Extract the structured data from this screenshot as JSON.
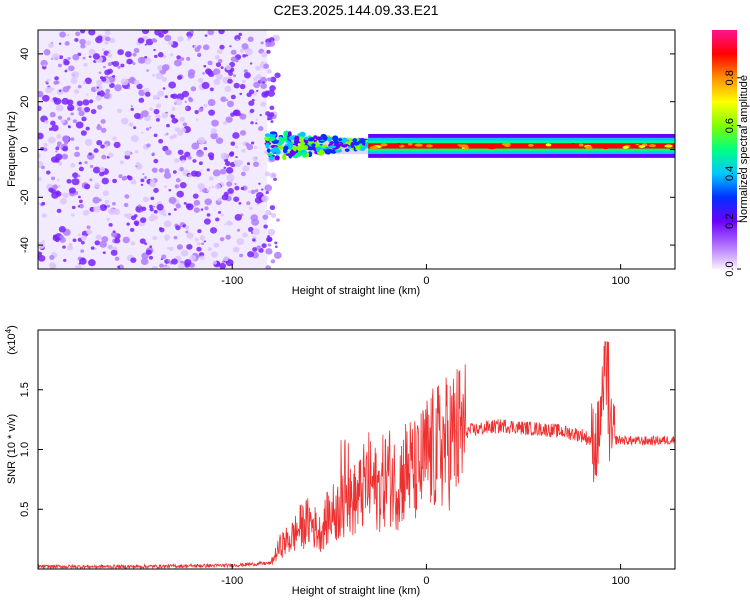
{
  "title": "C2E3.2025.144.09.33.E21",
  "chart_data": [
    {
      "type": "heatmap",
      "xlabel": "Height of straight line (km)",
      "ylabel": "Frequency (Hz)",
      "xlim": [
        -200,
        128
      ],
      "ylim": [
        -50,
        50
      ],
      "x_ticks": [
        -100,
        0,
        100
      ],
      "y_ticks": [
        -40,
        -20,
        0,
        20,
        40
      ],
      "colorbar": {
        "label": "Normalized spectral amplitude",
        "range": [
          0,
          1
        ],
        "ticks": [
          0.0,
          0.2,
          0.4,
          0.6,
          0.8
        ],
        "colormap": [
          "#f8f0ff",
          "#b070ff",
          "#6a00ff",
          "#0030ff",
          "#00c8ff",
          "#00ff80",
          "#80ff00",
          "#ffff00",
          "#ff9000",
          "#ff0000",
          "#ff1493"
        ]
      },
      "regions": [
        {
          "x": [
            -200,
            -82
          ],
          "description": "broadband noise",
          "amplitude": 0.2
        },
        {
          "x": [
            -82,
            -30
          ],
          "frequency": 2,
          "amplitude": 0.45
        },
        {
          "x": [
            -30,
            128
          ],
          "frequency": 1.5,
          "amplitude": 0.85
        }
      ]
    },
    {
      "type": "line",
      "xlabel": "Height of straight line (km)",
      "ylabel": "SNR (10 * v/v)",
      "y_multiplier": "(x10",
      "y_multiplier_exp": "4",
      "xlim": [
        -200,
        128
      ],
      "ylim": [
        0,
        2
      ],
      "x_ticks": [
        -100,
        0,
        100
      ],
      "y_ticks": [
        0.5,
        1.0,
        1.5
      ],
      "color": "#ee3030",
      "series": [
        {
          "x": [
            -200,
            -150,
            -100,
            -80,
            -75,
            -70,
            -65,
            -60,
            -55,
            -50,
            -45,
            -40,
            -35,
            -30,
            -25,
            -20,
            -15,
            -10,
            -5,
            0,
            5,
            10,
            15,
            20,
            30,
            40,
            50,
            60,
            70,
            80,
            88,
            92,
            95,
            100,
            110,
            128
          ],
          "y": [
            0.02,
            0.02,
            0.03,
            0.05,
            0.2,
            0.25,
            0.35,
            0.4,
            0.3,
            0.45,
            0.5,
            0.55,
            0.6,
            0.75,
            0.65,
            0.8,
            0.7,
            0.85,
            0.8,
            0.95,
            1.0,
            1.05,
            1.12,
            1.15,
            1.18,
            1.2,
            1.18,
            1.17,
            1.15,
            1.12,
            1.05,
            1.6,
            1.08,
            1.08,
            1.07,
            1.08
          ]
        }
      ]
    }
  ]
}
